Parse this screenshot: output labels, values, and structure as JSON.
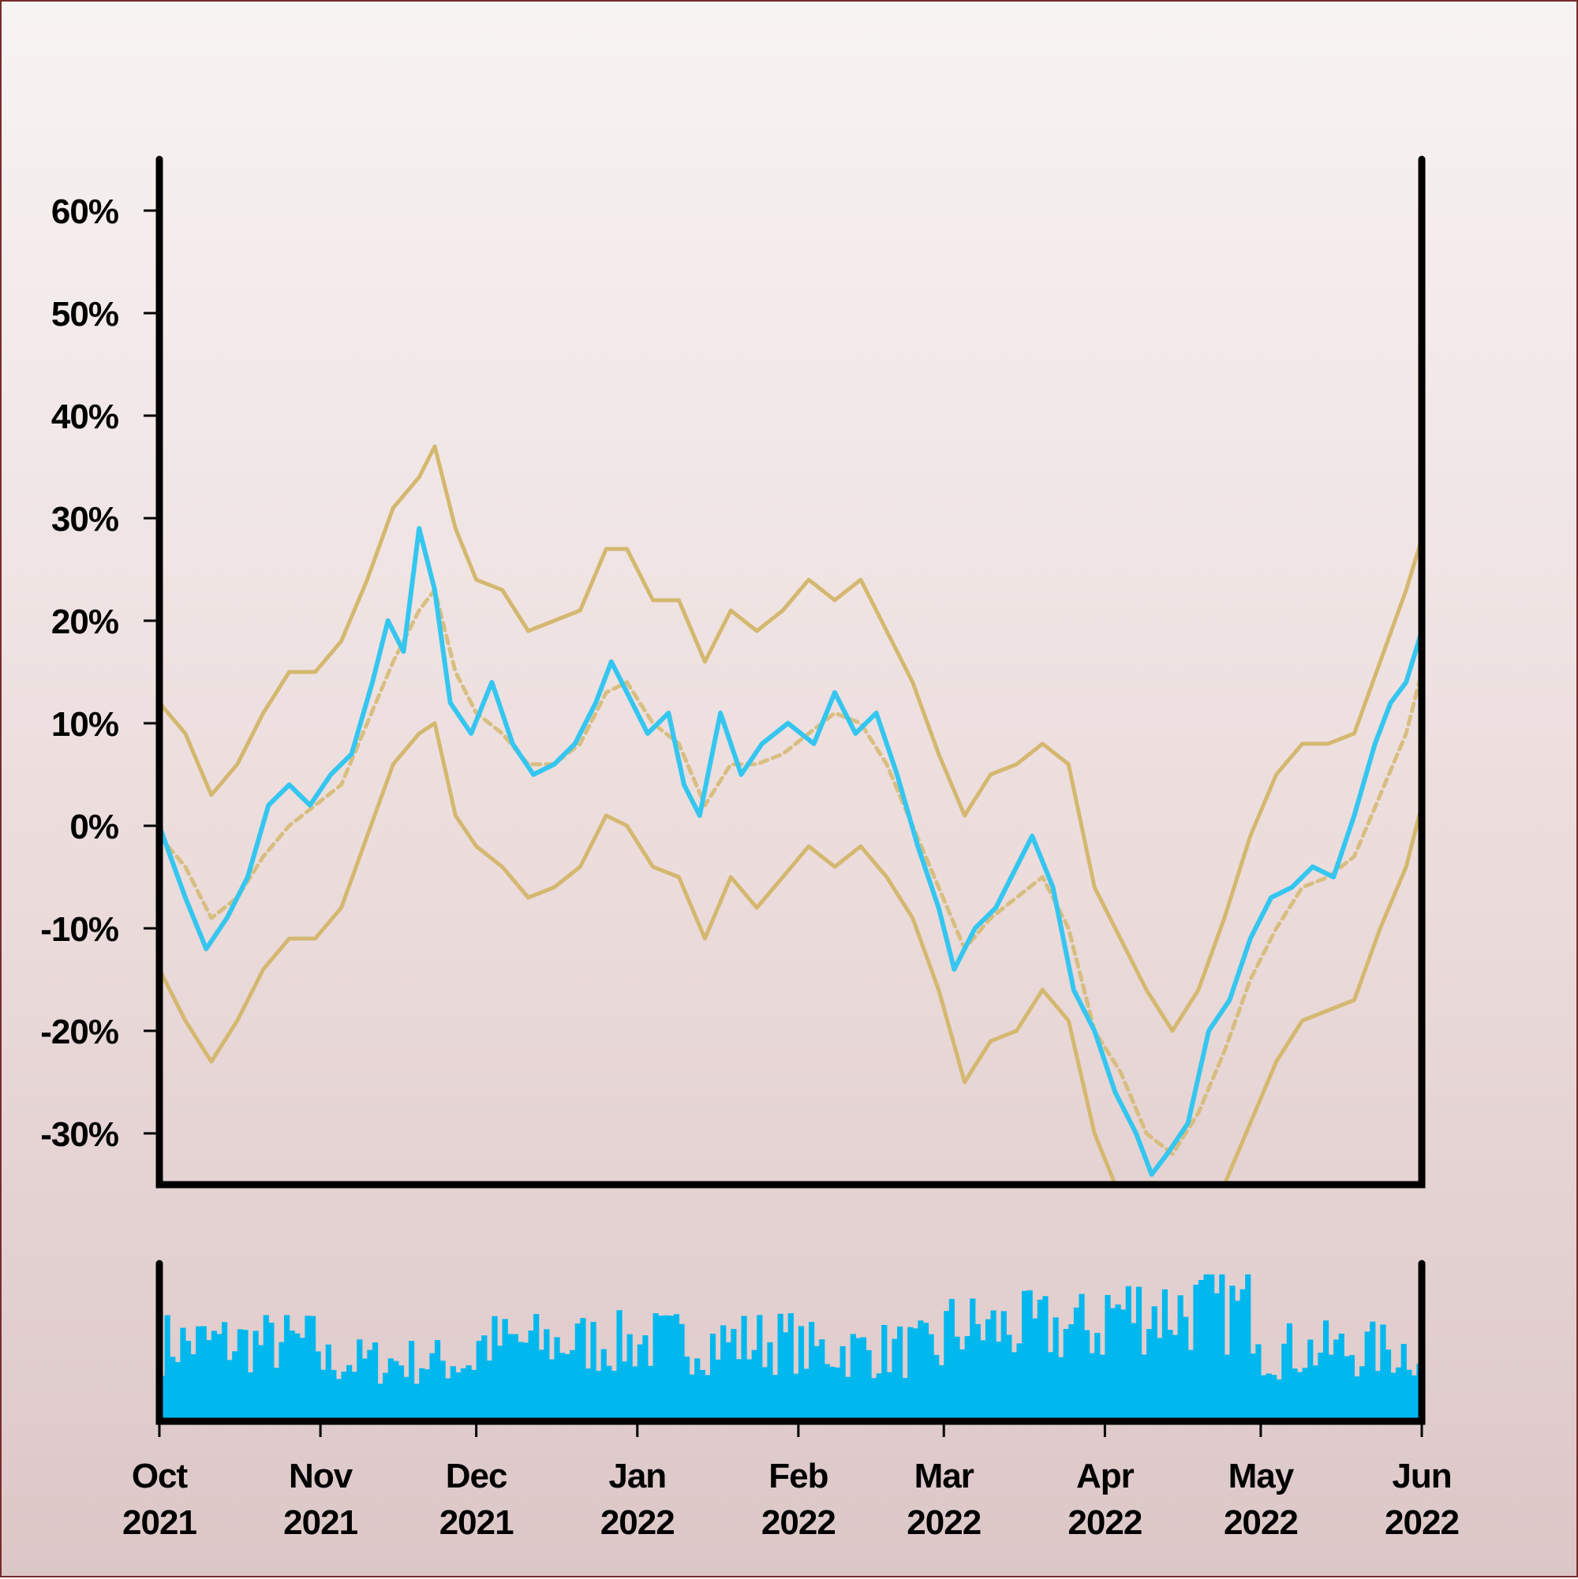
{
  "chart_data": [
    {
      "type": "line",
      "title": "",
      "xlabel": "",
      "ylabel": "",
      "x_range": [
        "2021-10-01",
        "2022-06-01"
      ],
      "ylim": [
        -35,
        65
      ],
      "y_unit": "%",
      "y_ticks": [
        {
          "value": 60,
          "label": "60%"
        },
        {
          "value": 50,
          "label": "50%"
        },
        {
          "value": 40,
          "label": "40%"
        },
        {
          "value": 30,
          "label": "30%"
        },
        {
          "value": 20,
          "label": "20%"
        },
        {
          "value": 10,
          "label": "10%"
        },
        {
          "value": 0,
          "label": "0%"
        },
        {
          "value": -10,
          "label": "-10%"
        },
        {
          "value": -20,
          "label": "-20%"
        },
        {
          "value": -30,
          "label": "-30%"
        }
      ],
      "grid": false,
      "legend": "none",
      "colors": {
        "price": "#35c6f0",
        "bands": "#d4b870",
        "background_top": "#f7f3f2",
        "background_bottom": "#dcc7c7"
      },
      "series": [
        {
          "role": "price",
          "style": "solid",
          "points": [
            [
              "2021-10-01",
              0
            ],
            [
              "2021-10-06",
              -7
            ],
            [
              "2021-10-10",
              -12
            ],
            [
              "2021-10-14",
              -9
            ],
            [
              "2021-10-18",
              -5
            ],
            [
              "2021-10-22",
              2
            ],
            [
              "2021-10-26",
              4
            ],
            [
              "2021-10-30",
              2
            ],
            [
              "2021-11-03",
              5
            ],
            [
              "2021-11-07",
              7
            ],
            [
              "2021-11-11",
              14
            ],
            [
              "2021-11-14",
              20
            ],
            [
              "2021-11-17",
              17
            ],
            [
              "2021-11-20",
              29
            ],
            [
              "2021-11-23",
              23
            ],
            [
              "2021-11-26",
              12
            ],
            [
              "2021-11-30",
              9
            ],
            [
              "2021-12-04",
              14
            ],
            [
              "2021-12-08",
              8
            ],
            [
              "2021-12-12",
              5
            ],
            [
              "2021-12-16",
              6
            ],
            [
              "2021-12-20",
              8
            ],
            [
              "2021-12-24",
              12
            ],
            [
              "2021-12-27",
              16
            ],
            [
              "2021-12-30",
              13
            ],
            [
              "2022-01-03",
              9
            ],
            [
              "2022-01-07",
              11
            ],
            [
              "2022-01-10",
              4
            ],
            [
              "2022-01-13",
              1
            ],
            [
              "2022-01-17",
              11
            ],
            [
              "2022-01-21",
              5
            ],
            [
              "2022-01-25",
              8
            ],
            [
              "2022-01-30",
              10
            ],
            [
              "2022-02-04",
              8
            ],
            [
              "2022-02-08",
              13
            ],
            [
              "2022-02-12",
              9
            ],
            [
              "2022-02-16",
              11
            ],
            [
              "2022-02-20",
              5
            ],
            [
              "2022-02-24",
              -2
            ],
            [
              "2022-02-28",
              -8
            ],
            [
              "2022-03-03",
              -14
            ],
            [
              "2022-03-07",
              -10
            ],
            [
              "2022-03-11",
              -8
            ],
            [
              "2022-03-15",
              -4
            ],
            [
              "2022-03-18",
              -1
            ],
            [
              "2022-03-22",
              -6
            ],
            [
              "2022-03-26",
              -16
            ],
            [
              "2022-03-30",
              -20
            ],
            [
              "2022-04-03",
              -26
            ],
            [
              "2022-04-07",
              -30
            ],
            [
              "2022-04-10",
              -34
            ],
            [
              "2022-04-13",
              -32
            ],
            [
              "2022-04-17",
              -29
            ],
            [
              "2022-04-21",
              -20
            ],
            [
              "2022-04-25",
              -17
            ],
            [
              "2022-04-29",
              -11
            ],
            [
              "2022-05-03",
              -7
            ],
            [
              "2022-05-07",
              -6
            ],
            [
              "2022-05-11",
              -4
            ],
            [
              "2022-05-15",
              -5
            ],
            [
              "2022-05-19",
              1
            ],
            [
              "2022-05-23",
              8
            ],
            [
              "2022-05-26",
              12
            ],
            [
              "2022-05-29",
              14
            ],
            [
              "2022-06-01",
              19
            ]
          ]
        },
        {
          "role": "moving-average",
          "style": "dashed",
          "points": [
            [
              "2021-10-01",
              -1
            ],
            [
              "2021-10-06",
              -4
            ],
            [
              "2021-10-11",
              -9
            ],
            [
              "2021-10-16",
              -7
            ],
            [
              "2021-10-21",
              -3
            ],
            [
              "2021-10-26",
              0
            ],
            [
              "2021-10-31",
              2
            ],
            [
              "2021-11-05",
              4
            ],
            [
              "2021-11-10",
              10
            ],
            [
              "2021-11-15",
              16
            ],
            [
              "2021-11-20",
              21
            ],
            [
              "2021-11-23",
              23
            ],
            [
              "2021-11-27",
              15
            ],
            [
              "2021-12-01",
              11
            ],
            [
              "2021-12-06",
              9
            ],
            [
              "2021-12-11",
              6
            ],
            [
              "2021-12-16",
              6
            ],
            [
              "2021-12-21",
              8
            ],
            [
              "2021-12-26",
              13
            ],
            [
              "2021-12-30",
              14
            ],
            [
              "2022-01-04",
              10
            ],
            [
              "2022-01-09",
              8
            ],
            [
              "2022-01-14",
              2
            ],
            [
              "2022-01-19",
              6
            ],
            [
              "2022-01-24",
              6
            ],
            [
              "2022-01-29",
              7
            ],
            [
              "2022-02-03",
              9
            ],
            [
              "2022-02-08",
              11
            ],
            [
              "2022-02-13",
              10
            ],
            [
              "2022-02-18",
              6
            ],
            [
              "2022-02-23",
              0
            ],
            [
              "2022-02-28",
              -6
            ],
            [
              "2022-03-05",
              -12
            ],
            [
              "2022-03-10",
              -9
            ],
            [
              "2022-03-15",
              -7
            ],
            [
              "2022-03-20",
              -5
            ],
            [
              "2022-03-25",
              -10
            ],
            [
              "2022-03-30",
              -20
            ],
            [
              "2022-04-04",
              -24
            ],
            [
              "2022-04-09",
              -30
            ],
            [
              "2022-04-14",
              -32
            ],
            [
              "2022-04-19",
              -28
            ],
            [
              "2022-04-24",
              -22
            ],
            [
              "2022-04-29",
              -15
            ],
            [
              "2022-05-04",
              -10
            ],
            [
              "2022-05-09",
              -6
            ],
            [
              "2022-05-14",
              -5
            ],
            [
              "2022-05-19",
              -3
            ],
            [
              "2022-05-24",
              3
            ],
            [
              "2022-05-29",
              9
            ],
            [
              "2022-06-01",
              15
            ]
          ]
        },
        {
          "role": "upper-band",
          "style": "solid",
          "points": [
            [
              "2021-10-01",
              12
            ],
            [
              "2021-10-06",
              9
            ],
            [
              "2021-10-11",
              3
            ],
            [
              "2021-10-16",
              6
            ],
            [
              "2021-10-21",
              11
            ],
            [
              "2021-10-26",
              15
            ],
            [
              "2021-10-31",
              15
            ],
            [
              "2021-11-05",
              18
            ],
            [
              "2021-11-10",
              24
            ],
            [
              "2021-11-15",
              31
            ],
            [
              "2021-11-20",
              34
            ],
            [
              "2021-11-23",
              37
            ],
            [
              "2021-11-27",
              29
            ],
            [
              "2021-12-01",
              24
            ],
            [
              "2021-12-06",
              23
            ],
            [
              "2021-12-11",
              19
            ],
            [
              "2021-12-16",
              20
            ],
            [
              "2021-12-21",
              21
            ],
            [
              "2021-12-26",
              27
            ],
            [
              "2021-12-30",
              27
            ],
            [
              "2022-01-04",
              22
            ],
            [
              "2022-01-09",
              22
            ],
            [
              "2022-01-14",
              16
            ],
            [
              "2022-01-19",
              21
            ],
            [
              "2022-01-24",
              19
            ],
            [
              "2022-01-29",
              21
            ],
            [
              "2022-02-03",
              24
            ],
            [
              "2022-02-08",
              22
            ],
            [
              "2022-02-13",
              24
            ],
            [
              "2022-02-18",
              19
            ],
            [
              "2022-02-23",
              14
            ],
            [
              "2022-02-28",
              7
            ],
            [
              "2022-03-05",
              1
            ],
            [
              "2022-03-10",
              5
            ],
            [
              "2022-03-15",
              6
            ],
            [
              "2022-03-20",
              8
            ],
            [
              "2022-03-25",
              6
            ],
            [
              "2022-03-30",
              -6
            ],
            [
              "2022-04-04",
              -11
            ],
            [
              "2022-04-09",
              -16
            ],
            [
              "2022-04-14",
              -20
            ],
            [
              "2022-04-19",
              -16
            ],
            [
              "2022-04-24",
              -9
            ],
            [
              "2022-04-29",
              -1
            ],
            [
              "2022-05-04",
              5
            ],
            [
              "2022-05-09",
              8
            ],
            [
              "2022-05-14",
              8
            ],
            [
              "2022-05-19",
              9
            ],
            [
              "2022-05-24",
              16
            ],
            [
              "2022-05-29",
              23
            ],
            [
              "2022-06-01",
              28
            ]
          ]
        },
        {
          "role": "lower-band",
          "style": "solid",
          "points": [
            [
              "2021-10-01",
              -14
            ],
            [
              "2021-10-06",
              -19
            ],
            [
              "2021-10-11",
              -23
            ],
            [
              "2021-10-16",
              -19
            ],
            [
              "2021-10-21",
              -14
            ],
            [
              "2021-10-26",
              -11
            ],
            [
              "2021-10-31",
              -11
            ],
            [
              "2021-11-05",
              -8
            ],
            [
              "2021-11-10",
              -1
            ],
            [
              "2021-11-15",
              6
            ],
            [
              "2021-11-20",
              9
            ],
            [
              "2021-11-23",
              10
            ],
            [
              "2021-11-27",
              1
            ],
            [
              "2021-12-01",
              -2
            ],
            [
              "2021-12-06",
              -4
            ],
            [
              "2021-12-11",
              -7
            ],
            [
              "2021-12-16",
              -6
            ],
            [
              "2021-12-21",
              -4
            ],
            [
              "2021-12-26",
              1
            ],
            [
              "2021-12-30",
              0
            ],
            [
              "2022-01-04",
              -4
            ],
            [
              "2022-01-09",
              -5
            ],
            [
              "2022-01-14",
              -11
            ],
            [
              "2022-01-19",
              -5
            ],
            [
              "2022-01-24",
              -8
            ],
            [
              "2022-01-29",
              -5
            ],
            [
              "2022-02-03",
              -2
            ],
            [
              "2022-02-08",
              -4
            ],
            [
              "2022-02-13",
              -2
            ],
            [
              "2022-02-18",
              -5
            ],
            [
              "2022-02-23",
              -9
            ],
            [
              "2022-02-28",
              -16
            ],
            [
              "2022-03-05",
              -25
            ],
            [
              "2022-03-10",
              -21
            ],
            [
              "2022-03-15",
              -20
            ],
            [
              "2022-03-20",
              -16
            ],
            [
              "2022-03-25",
              -19
            ],
            [
              "2022-03-30",
              -30
            ],
            [
              "2022-04-03",
              -35
            ]
          ]
        },
        {
          "role": "lower-band",
          "style": "solid",
          "points": [
            [
              "2022-04-24",
              -35
            ],
            [
              "2022-04-29",
              -29
            ],
            [
              "2022-05-04",
              -23
            ],
            [
              "2022-05-09",
              -19
            ],
            [
              "2022-05-14",
              -18
            ],
            [
              "2022-05-19",
              -17
            ],
            [
              "2022-05-24",
              -10
            ],
            [
              "2022-05-29",
              -4
            ],
            [
              "2022-06-01",
              2
            ]
          ]
        }
      ]
    },
    {
      "type": "bar",
      "title": "",
      "xlabel": "",
      "ylabel": "",
      "axis": "unlabeled",
      "color": "#00b8ee",
      "x_range": [
        "2021-10-01",
        "2022-06-01"
      ],
      "value_scale": "relative 0-1 (no axis printed)",
      "monthly_level": [
        {
          "month": "2021-10",
          "level": 0.55
        },
        {
          "month": "2021-11",
          "level": 0.42
        },
        {
          "month": "2021-12",
          "level": 0.55
        },
        {
          "month": "2022-01",
          "level": 0.56
        },
        {
          "month": "2022-02",
          "level": 0.5
        },
        {
          "month": "2022-03",
          "level": 0.65
        },
        {
          "month": "2022-04",
          "level": 0.78
        },
        {
          "month": "2022-05",
          "level": 0.5
        }
      ],
      "peak_level": 0.98
    }
  ],
  "x_ticks": [
    {
      "date": "2021-10-01",
      "month": "Oct",
      "year": "2021"
    },
    {
      "date": "2021-11-01",
      "month": "Nov",
      "year": "2021"
    },
    {
      "date": "2021-12-01",
      "month": "Dec",
      "year": "2021"
    },
    {
      "date": "2022-01-01",
      "month": "Jan",
      "year": "2022"
    },
    {
      "date": "2022-02-01",
      "month": "Feb",
      "year": "2022"
    },
    {
      "date": "2022-03-01",
      "month": "Mar",
      "year": "2022"
    },
    {
      "date": "2022-04-01",
      "month": "Apr",
      "year": "2022"
    },
    {
      "date": "2022-05-01",
      "month": "May",
      "year": "2022"
    },
    {
      "date": "2022-06-01",
      "month": "Jun",
      "year": "2022"
    }
  ]
}
